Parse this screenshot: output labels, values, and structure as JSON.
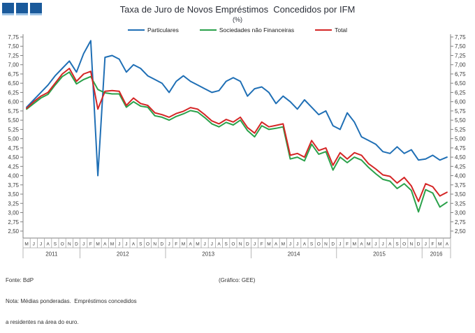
{
  "logo": {
    "color": "#1a5a9b",
    "squares": 3
  },
  "title": "Taxa de Juro de Novos Empréstimos  Concedidos por IFM",
  "subtitle": "(%)",
  "footer": {
    "fonte": "Fonte: BdP",
    "nota_line1": "Nota: Médias ponderadas.  Empréstimos concedidos",
    "nota_line2": "a residentes na área do euro.",
    "credit": "(Gráfico:  GEE)"
  },
  "chart_data": {
    "type": "line",
    "title": "Taxa de Juro de Novos Empréstimos Concedidos por IFM",
    "subtitle": "(%)",
    "ylabel": "",
    "xlabel": "",
    "y_axis": {
      "min": 2.5,
      "max": 7.75,
      "step": 0.25,
      "decimal_separator": "comma",
      "sides": [
        "left",
        "right"
      ]
    },
    "grid": false,
    "legend_position": "top",
    "categories": [
      "M",
      "J",
      "J",
      "A",
      "S",
      "O",
      "N",
      "D",
      "J",
      "F",
      "M",
      "A",
      "M",
      "J",
      "J",
      "A",
      "S",
      "O",
      "N",
      "D",
      "J",
      "F",
      "M",
      "A",
      "M",
      "J",
      "J",
      "A",
      "S",
      "O",
      "N",
      "D",
      "J",
      "F",
      "M",
      "A",
      "M",
      "J",
      "J",
      "A",
      "S",
      "O",
      "N",
      "D",
      "J",
      "F",
      "M",
      "A",
      "M",
      "J",
      "J",
      "A",
      "S",
      "O",
      "N",
      "D",
      "J",
      "F",
      "M",
      "A"
    ],
    "year_groups": [
      {
        "label": "2011",
        "count": 8
      },
      {
        "label": "2012",
        "count": 12
      },
      {
        "label": "2013",
        "count": 12
      },
      {
        "label": "2014",
        "count": 12
      },
      {
        "label": "2015",
        "count": 12
      },
      {
        "label": "2016",
        "count": 4
      }
    ],
    "series": [
      {
        "name": "Particulares",
        "color": "#1f6fb5",
        "values": [
          5.85,
          6.05,
          6.25,
          6.45,
          6.7,
          6.9,
          7.1,
          6.8,
          7.3,
          7.65,
          4.0,
          7.2,
          7.25,
          7.15,
          6.8,
          7.0,
          6.9,
          6.7,
          6.6,
          6.5,
          6.25,
          6.55,
          6.7,
          6.55,
          6.45,
          6.35,
          6.25,
          6.3,
          6.55,
          6.65,
          6.55,
          6.15,
          6.35,
          6.4,
          6.25,
          5.95,
          6.15,
          6.0,
          5.8,
          6.05,
          5.85,
          5.65,
          5.75,
          5.35,
          5.25,
          5.7,
          5.45,
          5.05,
          4.95,
          4.85,
          4.65,
          4.6,
          4.78,
          4.6,
          4.7,
          4.42,
          4.45,
          4.55,
          4.42,
          4.5
        ]
      },
      {
        "name": "Sociedades não Financeiras",
        "color": "#2aa14a",
        "values": [
          5.8,
          5.95,
          6.1,
          6.2,
          6.45,
          6.68,
          6.8,
          6.48,
          6.6,
          6.68,
          6.33,
          6.24,
          6.21,
          6.21,
          5.85,
          6.0,
          5.88,
          5.85,
          5.62,
          5.58,
          5.5,
          5.6,
          5.67,
          5.76,
          5.72,
          5.57,
          5.4,
          5.32,
          5.44,
          5.37,
          5.5,
          5.22,
          5.05,
          5.35,
          5.25,
          5.28,
          5.32,
          4.45,
          4.5,
          4.4,
          4.85,
          4.58,
          4.65,
          4.15,
          4.5,
          4.35,
          4.5,
          4.42,
          4.22,
          4.05,
          3.9,
          3.85,
          3.65,
          3.78,
          3.6,
          3.02,
          3.62,
          3.53,
          3.15,
          3.28
        ]
      },
      {
        "name": "Total",
        "color": "#d42525",
        "values": [
          5.82,
          6.0,
          6.15,
          6.25,
          6.5,
          6.75,
          6.9,
          6.55,
          6.75,
          6.82,
          5.8,
          6.28,
          6.3,
          6.28,
          5.9,
          6.1,
          5.95,
          5.9,
          5.7,
          5.65,
          5.58,
          5.68,
          5.74,
          5.84,
          5.8,
          5.65,
          5.48,
          5.4,
          5.52,
          5.45,
          5.58,
          5.3,
          5.15,
          5.45,
          5.32,
          5.36,
          5.4,
          4.55,
          4.6,
          4.5,
          4.95,
          4.68,
          4.75,
          4.28,
          4.62,
          4.45,
          4.62,
          4.55,
          4.32,
          4.18,
          4.02,
          3.98,
          3.8,
          3.95,
          3.72,
          3.3,
          3.78,
          3.7,
          3.45,
          3.55
        ]
      }
    ]
  }
}
